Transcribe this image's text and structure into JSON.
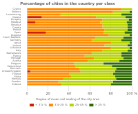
{
  "chart_data": {
    "type": "bar",
    "orientation": "horizontal",
    "stacked": true,
    "title": "Percentage of cities in the country per class",
    "legend_title": "Degree of mean soil sealing of the city area",
    "categories": [
      "Cyprus",
      "Belarus",
      "Luxembourg",
      "Greece",
      "Hungary",
      "Moldova",
      "Slovakia",
      "Croatia",
      "Poland",
      "Spain",
      "Bulgaria",
      "Czech Republic",
      "Germany",
      "Latvia",
      "Ireland",
      "Lithuania",
      "Italy",
      "Netherlands",
      "France",
      "Portugal",
      "Austria",
      "Belgium",
      "Switzerland",
      "Denmark",
      "United Kingdom",
      "Finland",
      "Malta",
      "Norway",
      "Sweden",
      "Estonia"
    ],
    "series": [
      {
        "name": "< 7.5 %",
        "color": "#cc2200",
        "values": [
          0,
          0,
          0,
          14,
          0,
          8,
          0,
          0,
          0,
          18,
          0,
          0,
          0,
          0,
          0,
          0,
          0,
          0,
          0,
          0,
          0,
          0,
          0,
          0,
          3,
          0,
          0,
          0,
          0,
          0
        ]
      },
      {
        "name": "7.5-25 %",
        "color": "#ff8c00",
        "values": [
          90,
          82,
          32,
          52,
          72,
          62,
          72,
          72,
          74,
          55,
          78,
          65,
          62,
          80,
          74,
          80,
          72,
          62,
          55,
          64,
          58,
          45,
          46,
          50,
          48,
          40,
          42,
          35,
          30,
          33
        ]
      },
      {
        "name": "25-45 %",
        "color": "#b8d400",
        "values": [
          10,
          16,
          58,
          28,
          25,
          25,
          24,
          24,
          22,
          20,
          20,
          27,
          28,
          18,
          22,
          18,
          24,
          28,
          35,
          28,
          30,
          28,
          35,
          35,
          33,
          42,
          42,
          50,
          52,
          47
        ]
      },
      {
        "name": "> 25 %",
        "color": "#2d6b00",
        "values": [
          0,
          2,
          10,
          6,
          3,
          5,
          4,
          4,
          4,
          7,
          2,
          8,
          10,
          2,
          4,
          2,
          4,
          10,
          10,
          8,
          12,
          27,
          19,
          15,
          16,
          18,
          16,
          15,
          18,
          20
        ]
      }
    ],
    "xlim": [
      0,
      100
    ],
    "xticks": [
      0,
      20,
      40,
      60,
      80,
      {
        "value": 100,
        "label": "100 %"
      }
    ],
    "grid": true,
    "legend": "bottom"
  }
}
